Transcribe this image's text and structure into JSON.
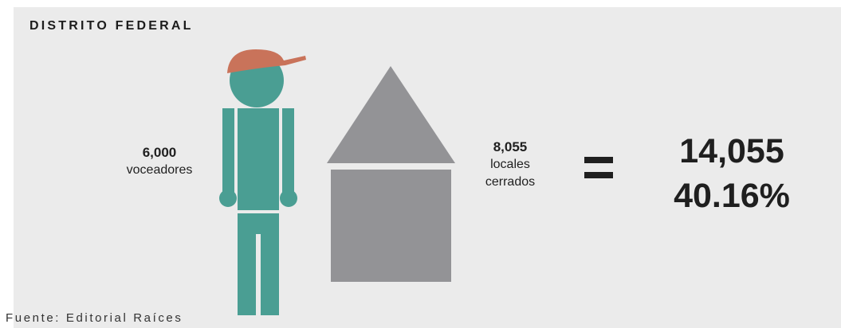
{
  "header": {
    "title": "DISTRITO FEDERAL"
  },
  "voceadores": {
    "value": "6,000",
    "label": "voceadores"
  },
  "locales": {
    "value": "8,055",
    "label_line1": "locales",
    "label_line2": "cerrados"
  },
  "operator": {
    "symbol": "="
  },
  "result": {
    "total": "14,055",
    "percent": "40.16%"
  },
  "footer": {
    "source": "Fuente: Editorial Raíces"
  },
  "icons": {
    "person": "person-icon",
    "cap": "cap-icon",
    "house": "house-icon"
  },
  "colors": {
    "background": "#ebebeb",
    "person": "#4a9e93",
    "cap": "#c9735a",
    "house": "#939396",
    "text": "#1f1f1f"
  }
}
